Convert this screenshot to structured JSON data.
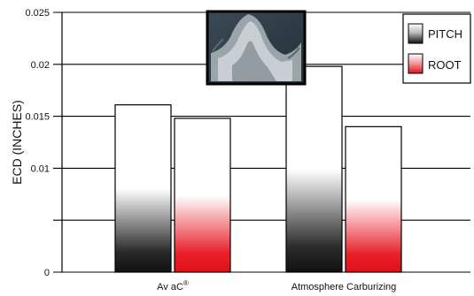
{
  "chart_data": {
    "type": "bar",
    "title": "",
    "xlabel": "",
    "ylabel": "ECD (INCHES)",
    "categories": [
      "Av aC",
      "Atmosphere Carburizing"
    ],
    "category_superscripts": [
      "®",
      ""
    ],
    "ylim": [
      0,
      0.025
    ],
    "yticks": [
      {
        "value": 0,
        "label": "0"
      },
      {
        "value": 0.01,
        "label": "0.01"
      },
      {
        "value": 0.015,
        "label": "0.015"
      },
      {
        "value": 0.02,
        "label": "0.02"
      },
      {
        "value": 0.025,
        "label": "0.025"
      }
    ],
    "grid": true,
    "legend_position": "top-right",
    "series": [
      {
        "name": "PITCH",
        "values": [
          0.0161,
          0.0198
        ],
        "color_top": "#ffffff",
        "color_bottom": "#111111"
      },
      {
        "name": "ROOT",
        "values": [
          0.0148,
          0.014
        ],
        "color_top": "#ffffff",
        "color_bottom": "#e0101a"
      }
    ],
    "inset_image": "gear tooth micrograph"
  }
}
